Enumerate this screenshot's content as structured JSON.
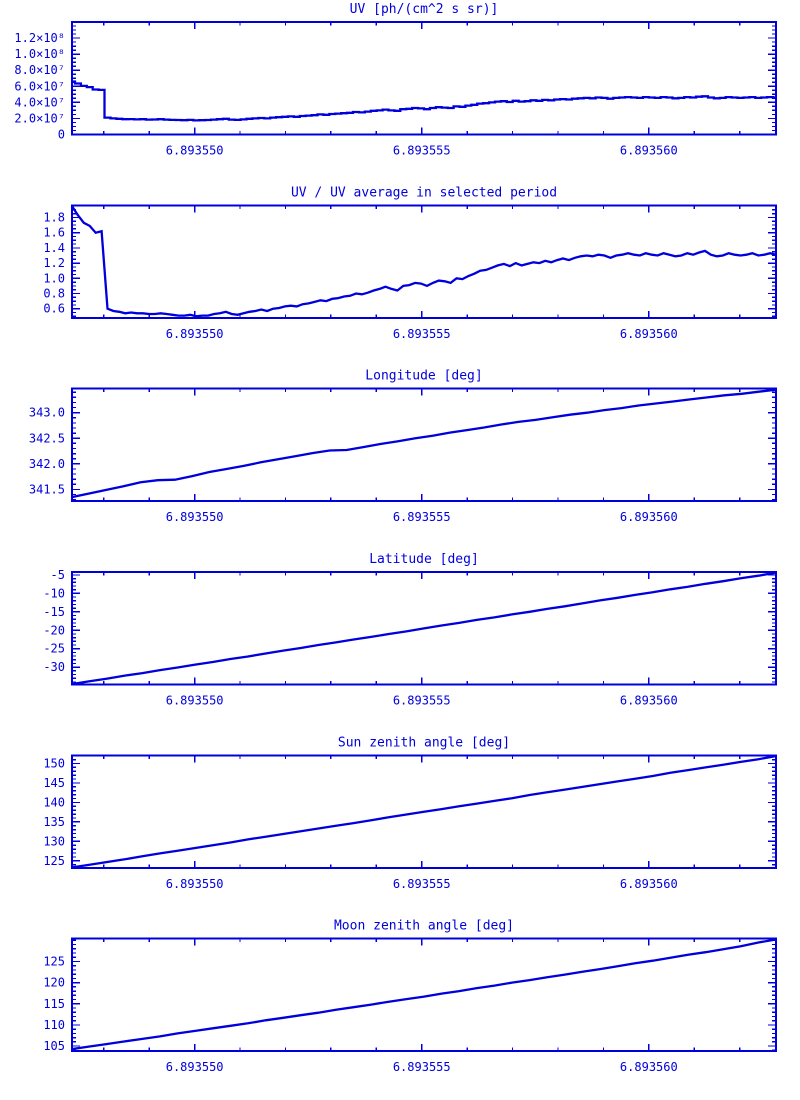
{
  "colors": {
    "plot_blue": "#0000dd",
    "background": "#ffffff"
  },
  "x_axis": {
    "base_value": 6.89355,
    "offset_scale": 1e-06,
    "start_offset": -2.7,
    "end_offset": 12.8,
    "tick_offsets": [
      0,
      5,
      10
    ],
    "tick_labels": [
      "6.893550",
      "6.893555",
      "6.893560"
    ],
    "minor_step": 1
  },
  "chart_data": [
    {
      "slug": "uv",
      "type": "line",
      "line_style": "steps",
      "title": "UV [ph/(cm^2 s sr)]",
      "ylabel": "",
      "y_scale": 10000000.0,
      "ylim": [
        0,
        14
      ],
      "yticks": [
        0,
        2,
        4,
        6,
        8,
        10,
        12
      ],
      "ytick_labels": [
        "0",
        "2.0×10⁷",
        "4.0×10⁷",
        "6.0×10⁷",
        "8.0×10⁷",
        "1.0×10⁸",
        "1.2×10⁸"
      ],
      "y_minor_step": 0.5,
      "y": [
        6.6,
        6.35,
        6.05,
        5.9,
        5.6,
        5.55,
        2.1,
        2.0,
        1.95,
        1.9,
        1.92,
        1.88,
        1.9,
        1.85,
        1.87,
        1.9,
        1.85,
        1.82,
        1.8,
        1.78,
        1.82,
        1.75,
        1.78,
        1.8,
        1.85,
        1.9,
        1.95,
        1.85,
        1.82,
        1.88,
        1.95,
        2.0,
        2.05,
        2.0,
        2.1,
        2.15,
        2.2,
        2.25,
        2.2,
        2.3,
        2.35,
        2.4,
        2.5,
        2.45,
        2.55,
        2.6,
        2.65,
        2.7,
        2.8,
        2.75,
        2.85,
        2.95,
        3.0,
        3.1,
        3.0,
        2.95,
        3.15,
        3.2,
        3.3,
        3.25,
        3.15,
        3.3,
        3.4,
        3.35,
        3.3,
        3.5,
        3.45,
        3.6,
        3.7,
        3.85,
        3.9,
        4.0,
        4.1,
        4.15,
        4.05,
        4.2,
        4.1,
        4.15,
        4.25,
        4.2,
        4.3,
        4.25,
        4.35,
        4.4,
        4.35,
        4.45,
        4.5,
        4.55,
        4.5,
        4.6,
        4.55,
        4.45,
        4.55,
        4.6,
        4.65,
        4.6,
        4.55,
        4.65,
        4.6,
        4.55,
        4.65,
        4.6,
        4.5,
        4.55,
        4.65,
        4.6,
        4.7,
        4.75,
        4.6,
        4.5,
        4.55,
        4.65,
        4.6,
        4.55,
        4.6,
        4.65,
        4.55,
        4.6,
        4.65,
        4.6
      ]
    },
    {
      "slug": "uv-ratio",
      "type": "line",
      "line_style": "segments",
      "title": "UV / UV average in selected period",
      "ylabel": "",
      "y_scale": 1,
      "ylim": [
        0.48,
        1.96
      ],
      "yticks": [
        0.6,
        0.8,
        1.0,
        1.2,
        1.4,
        1.6,
        1.8
      ],
      "ytick_labels": [
        "0.6",
        "0.8",
        "1.0",
        "1.2",
        "1.4",
        "1.6",
        "1.8"
      ],
      "y_minor_step": 0.05,
      "y": [
        1.95,
        1.83,
        1.73,
        1.69,
        1.6,
        1.62,
        0.6,
        0.57,
        0.56,
        0.54,
        0.55,
        0.54,
        0.54,
        0.53,
        0.53,
        0.54,
        0.53,
        0.52,
        0.51,
        0.51,
        0.52,
        0.5,
        0.51,
        0.51,
        0.53,
        0.54,
        0.56,
        0.53,
        0.52,
        0.54,
        0.56,
        0.57,
        0.59,
        0.57,
        0.6,
        0.61,
        0.63,
        0.64,
        0.63,
        0.66,
        0.67,
        0.69,
        0.71,
        0.7,
        0.73,
        0.74,
        0.76,
        0.77,
        0.8,
        0.79,
        0.81,
        0.84,
        0.86,
        0.89,
        0.86,
        0.84,
        0.9,
        0.91,
        0.94,
        0.93,
        0.9,
        0.94,
        0.97,
        0.96,
        0.94,
        1.0,
        0.99,
        1.03,
        1.06,
        1.1,
        1.11,
        1.14,
        1.17,
        1.19,
        1.16,
        1.2,
        1.17,
        1.19,
        1.21,
        1.2,
        1.23,
        1.21,
        1.24,
        1.26,
        1.24,
        1.27,
        1.29,
        1.3,
        1.29,
        1.31,
        1.3,
        1.27,
        1.3,
        1.31,
        1.33,
        1.31,
        1.3,
        1.33,
        1.31,
        1.3,
        1.33,
        1.31,
        1.29,
        1.3,
        1.33,
        1.31,
        1.34,
        1.36,
        1.31,
        1.29,
        1.3,
        1.33,
        1.31,
        1.3,
        1.31,
        1.33,
        1.3,
        1.31,
        1.33,
        1.31
      ]
    },
    {
      "slug": "longitude",
      "type": "line",
      "line_style": "segments",
      "title": "Longitude [deg]",
      "ylabel": "deg",
      "y_scale": 1,
      "ylim": [
        341.27,
        343.47
      ],
      "yticks": [
        341.5,
        342.0,
        342.5,
        343.0
      ],
      "ytick_labels": [
        "341.5",
        "342.0",
        "342.5",
        "343.0"
      ],
      "y_minor_step": 0.1,
      "y": [
        341.35,
        341.42,
        341.49,
        341.56,
        341.64,
        341.68,
        341.69,
        341.76,
        341.84,
        341.9,
        341.96,
        342.03,
        342.09,
        342.15,
        342.21,
        342.26,
        342.27,
        342.33,
        342.39,
        342.44,
        342.5,
        342.55,
        342.61,
        342.66,
        342.71,
        342.77,
        342.82,
        342.86,
        342.91,
        342.96,
        343.0,
        343.05,
        343.09,
        343.14,
        343.18,
        343.22,
        343.26,
        343.3,
        343.34,
        343.37,
        343.41,
        343.45
      ]
    },
    {
      "slug": "latitude",
      "type": "line",
      "line_style": "segments",
      "title": "Latitude [deg]",
      "ylabel": "deg",
      "y_scale": 1,
      "ylim": [
        -34.7,
        -4.2
      ],
      "yticks": [
        -30,
        -25,
        -20,
        -15,
        -10,
        -5
      ],
      "ytick_labels": [
        "-30",
        "-25",
        "-20",
        "-15",
        "-10",
        "-5"
      ],
      "y_minor_step": 1,
      "y": [
        -34.6,
        -33.8,
        -33.1,
        -32.3,
        -31.6,
        -30.8,
        -30.1,
        -29.3,
        -28.6,
        -27.8,
        -27.1,
        -26.3,
        -25.5,
        -24.8,
        -24.0,
        -23.3,
        -22.5,
        -21.8,
        -21.0,
        -20.3,
        -19.5,
        -18.7,
        -18.0,
        -17.2,
        -16.5,
        -15.7,
        -15.0,
        -14.2,
        -13.5,
        -12.7,
        -11.9,
        -11.2,
        -10.4,
        -9.7,
        -8.9,
        -8.2,
        -7.4,
        -6.7,
        -5.9,
        -5.2,
        -4.4
      ]
    },
    {
      "slug": "sun-zenith",
      "type": "line",
      "line_style": "segments",
      "title": "Sun zenith angle [deg]",
      "ylabel": "deg",
      "y_scale": 1,
      "ylim": [
        123.2,
        152.1
      ],
      "yticks": [
        125,
        130,
        135,
        140,
        145,
        150
      ],
      "ytick_labels": [
        "125",
        "130",
        "135",
        "140",
        "145",
        "150"
      ],
      "y_minor_step": 1,
      "y": [
        123.3,
        124.0,
        124.7,
        125.4,
        126.2,
        126.9,
        127.6,
        128.3,
        129.0,
        129.7,
        130.5,
        131.2,
        131.9,
        132.6,
        133.3,
        134.0,
        134.7,
        135.4,
        136.2,
        136.9,
        137.6,
        138.3,
        139.0,
        139.7,
        140.4,
        141.1,
        141.9,
        142.6,
        143.3,
        144.0,
        144.7,
        145.4,
        146.1,
        146.8,
        147.6,
        148.3,
        149.0,
        149.7,
        150.4,
        151.1,
        151.9
      ]
    },
    {
      "slug": "moon-zenith",
      "type": "line",
      "line_style": "segments",
      "title": "Moon zenith angle [deg]",
      "ylabel": "deg",
      "y_scale": 1,
      "ylim": [
        103.8,
        130.4
      ],
      "yticks": [
        105,
        110,
        115,
        120,
        125
      ],
      "ytick_labels": [
        "105",
        "110",
        "115",
        "120",
        "125"
      ],
      "y_minor_step": 1,
      "y": [
        104.3,
        104.9,
        105.5,
        106.1,
        106.7,
        107.3,
        108.0,
        108.6,
        109.2,
        109.8,
        110.4,
        111.1,
        111.7,
        112.3,
        112.9,
        113.6,
        114.2,
        114.8,
        115.5,
        116.1,
        116.7,
        117.4,
        118.0,
        118.7,
        119.3,
        120.0,
        120.6,
        121.3,
        121.9,
        122.6,
        123.2,
        123.9,
        124.6,
        125.2,
        125.9,
        126.6,
        127.2,
        127.9,
        128.6,
        129.5,
        130.2
      ]
    }
  ]
}
